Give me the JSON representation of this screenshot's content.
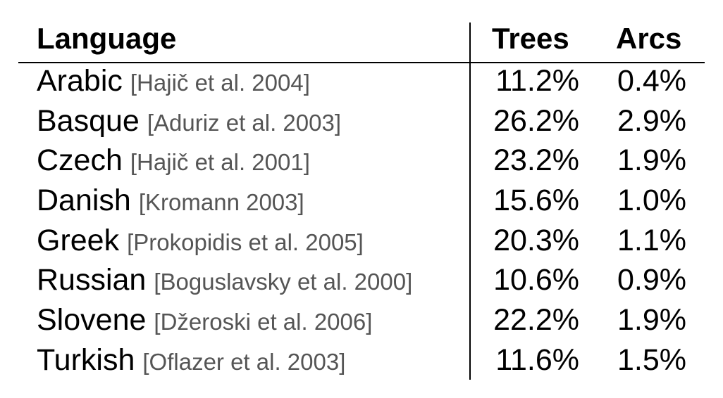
{
  "table": {
    "headers": {
      "language": "Language",
      "trees": "Trees",
      "arcs": "Arcs"
    },
    "rows": [
      {
        "language": "Arabic",
        "citation": "[Hajič et al. 2004]",
        "trees": "11.2%",
        "arcs": "0.4%"
      },
      {
        "language": "Basque",
        "citation": "[Aduriz et al. 2003]",
        "trees": "26.2%",
        "arcs": "2.9%"
      },
      {
        "language": "Czech",
        "citation": "[Hajič et al. 2001]",
        "trees": "23.2%",
        "arcs": "1.9%"
      },
      {
        "language": "Danish",
        "citation": "[Kromann 2003]",
        "trees": "15.6%",
        "arcs": "1.0%"
      },
      {
        "language": "Greek",
        "citation": "[Prokopidis et al. 2005]",
        "trees": "20.3%",
        "arcs": "1.1%"
      },
      {
        "language": "Russian",
        "citation": "[Boguslavsky et al. 2000]",
        "trees": "10.6%",
        "arcs": "0.9%"
      },
      {
        "language": "Slovene",
        "citation": "[Džeroski et al. 2006]",
        "trees": "22.2%",
        "arcs": "1.9%"
      },
      {
        "language": "Turkish",
        "citation": "[Oflazer et al. 2003]",
        "trees": "11.6%",
        "arcs": "1.5%"
      }
    ]
  }
}
